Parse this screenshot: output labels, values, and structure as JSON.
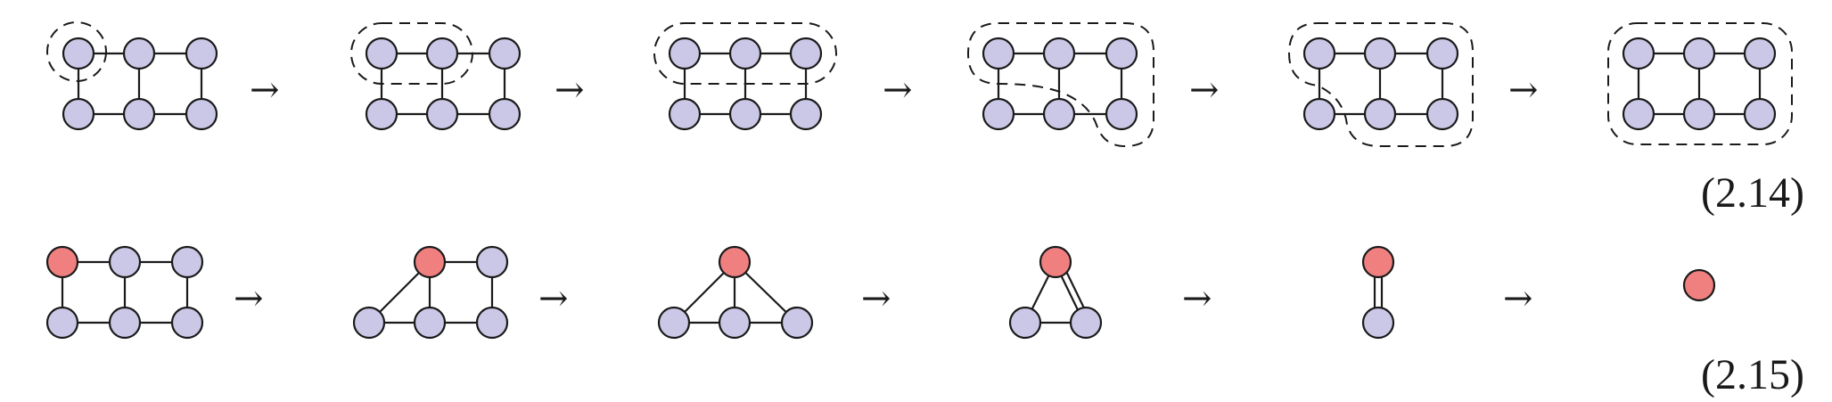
{
  "diagram": {
    "arrow_glyph": "→",
    "rows": [
      {
        "equation_label": "(2.14)",
        "description": "progressive dashed grouping of a 2x3 ladder graph"
      },
      {
        "equation_label": "(2.15)",
        "description": "contraction of ladder graph to a single red vertex"
      }
    ],
    "colors": {
      "vertex": "#cac8e6",
      "highlight_vertex": "#f08080",
      "edge": "#1a1a1a"
    }
  }
}
